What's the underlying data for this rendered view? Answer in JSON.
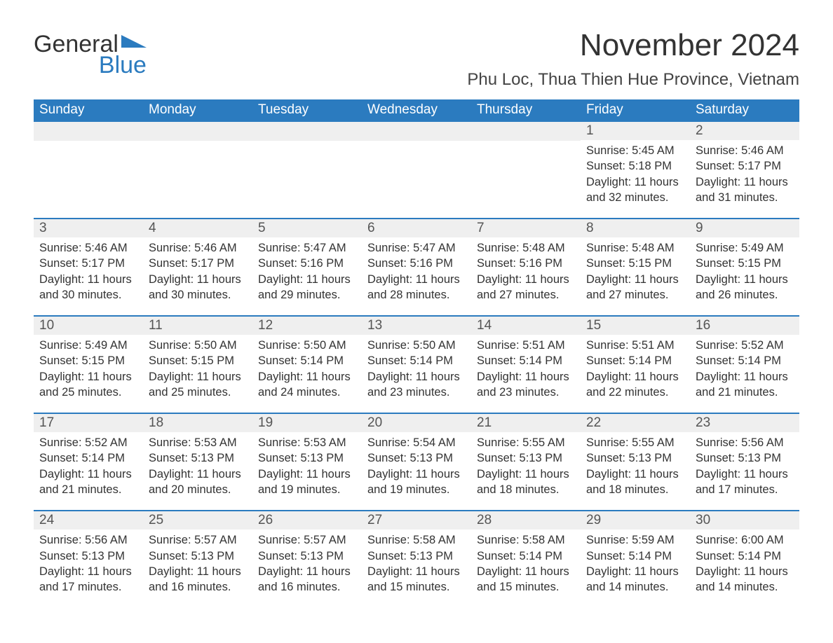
{
  "logo": {
    "text1": "General",
    "text2": "Blue",
    "tri_color": "#2b7bbf"
  },
  "title": "November 2024",
  "location": "Phu Loc, Thua Thien Hue Province, Vietnam",
  "colors": {
    "header_bg": "#2b7bbf",
    "header_text": "#ffffff",
    "week_border": "#2b7bbf",
    "daynum_bg": "#efefef",
    "text": "#333333"
  },
  "weekdays": [
    "Sunday",
    "Monday",
    "Tuesday",
    "Wednesday",
    "Thursday",
    "Friday",
    "Saturday"
  ],
  "weeks": [
    [
      null,
      null,
      null,
      null,
      null,
      {
        "n": "1",
        "sunrise": "5:45 AM",
        "sunset": "5:18 PM",
        "daylight": "11 hours and 32 minutes."
      },
      {
        "n": "2",
        "sunrise": "5:46 AM",
        "sunset": "5:17 PM",
        "daylight": "11 hours and 31 minutes."
      }
    ],
    [
      {
        "n": "3",
        "sunrise": "5:46 AM",
        "sunset": "5:17 PM",
        "daylight": "11 hours and 30 minutes."
      },
      {
        "n": "4",
        "sunrise": "5:46 AM",
        "sunset": "5:17 PM",
        "daylight": "11 hours and 30 minutes."
      },
      {
        "n": "5",
        "sunrise": "5:47 AM",
        "sunset": "5:16 PM",
        "daylight": "11 hours and 29 minutes."
      },
      {
        "n": "6",
        "sunrise": "5:47 AM",
        "sunset": "5:16 PM",
        "daylight": "11 hours and 28 minutes."
      },
      {
        "n": "7",
        "sunrise": "5:48 AM",
        "sunset": "5:16 PM",
        "daylight": "11 hours and 27 minutes."
      },
      {
        "n": "8",
        "sunrise": "5:48 AM",
        "sunset": "5:15 PM",
        "daylight": "11 hours and 27 minutes."
      },
      {
        "n": "9",
        "sunrise": "5:49 AM",
        "sunset": "5:15 PM",
        "daylight": "11 hours and 26 minutes."
      }
    ],
    [
      {
        "n": "10",
        "sunrise": "5:49 AM",
        "sunset": "5:15 PM",
        "daylight": "11 hours and 25 minutes."
      },
      {
        "n": "11",
        "sunrise": "5:50 AM",
        "sunset": "5:15 PM",
        "daylight": "11 hours and 25 minutes."
      },
      {
        "n": "12",
        "sunrise": "5:50 AM",
        "sunset": "5:14 PM",
        "daylight": "11 hours and 24 minutes."
      },
      {
        "n": "13",
        "sunrise": "5:50 AM",
        "sunset": "5:14 PM",
        "daylight": "11 hours and 23 minutes."
      },
      {
        "n": "14",
        "sunrise": "5:51 AM",
        "sunset": "5:14 PM",
        "daylight": "11 hours and 23 minutes."
      },
      {
        "n": "15",
        "sunrise": "5:51 AM",
        "sunset": "5:14 PM",
        "daylight": "11 hours and 22 minutes."
      },
      {
        "n": "16",
        "sunrise": "5:52 AM",
        "sunset": "5:14 PM",
        "daylight": "11 hours and 21 minutes."
      }
    ],
    [
      {
        "n": "17",
        "sunrise": "5:52 AM",
        "sunset": "5:14 PM",
        "daylight": "11 hours and 21 minutes."
      },
      {
        "n": "18",
        "sunrise": "5:53 AM",
        "sunset": "5:13 PM",
        "daylight": "11 hours and 20 minutes."
      },
      {
        "n": "19",
        "sunrise": "5:53 AM",
        "sunset": "5:13 PM",
        "daylight": "11 hours and 19 minutes."
      },
      {
        "n": "20",
        "sunrise": "5:54 AM",
        "sunset": "5:13 PM",
        "daylight": "11 hours and 19 minutes."
      },
      {
        "n": "21",
        "sunrise": "5:55 AM",
        "sunset": "5:13 PM",
        "daylight": "11 hours and 18 minutes."
      },
      {
        "n": "22",
        "sunrise": "5:55 AM",
        "sunset": "5:13 PM",
        "daylight": "11 hours and 18 minutes."
      },
      {
        "n": "23",
        "sunrise": "5:56 AM",
        "sunset": "5:13 PM",
        "daylight": "11 hours and 17 minutes."
      }
    ],
    [
      {
        "n": "24",
        "sunrise": "5:56 AM",
        "sunset": "5:13 PM",
        "daylight": "11 hours and 17 minutes."
      },
      {
        "n": "25",
        "sunrise": "5:57 AM",
        "sunset": "5:13 PM",
        "daylight": "11 hours and 16 minutes."
      },
      {
        "n": "26",
        "sunrise": "5:57 AM",
        "sunset": "5:13 PM",
        "daylight": "11 hours and 16 minutes."
      },
      {
        "n": "27",
        "sunrise": "5:58 AM",
        "sunset": "5:13 PM",
        "daylight": "11 hours and 15 minutes."
      },
      {
        "n": "28",
        "sunrise": "5:58 AM",
        "sunset": "5:14 PM",
        "daylight": "11 hours and 15 minutes."
      },
      {
        "n": "29",
        "sunrise": "5:59 AM",
        "sunset": "5:14 PM",
        "daylight": "11 hours and 14 minutes."
      },
      {
        "n": "30",
        "sunrise": "6:00 AM",
        "sunset": "5:14 PM",
        "daylight": "11 hours and 14 minutes."
      }
    ]
  ],
  "labels": {
    "sunrise": "Sunrise: ",
    "sunset": "Sunset: ",
    "daylight": "Daylight: "
  }
}
